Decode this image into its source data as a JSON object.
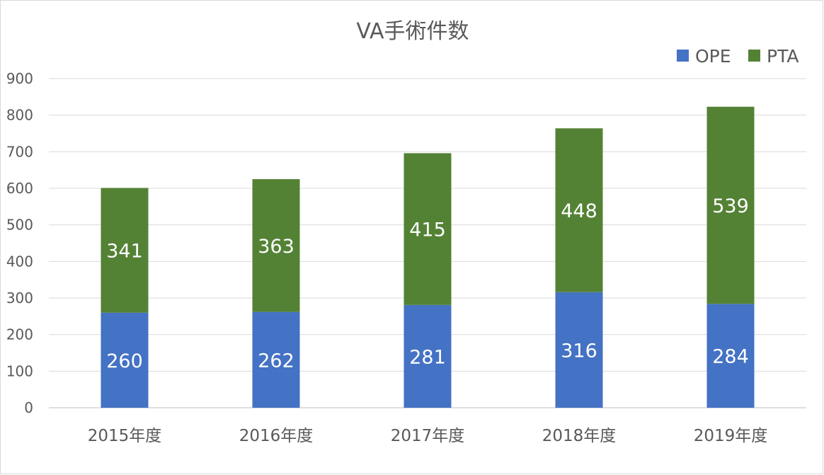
{
  "chart_data": {
    "type": "bar",
    "stacked": true,
    "title": "VA手術件数",
    "xlabel": "",
    "ylabel": "",
    "categories": [
      "2015年度",
      "2016年度",
      "2017年度",
      "2018年度",
      "2019年度"
    ],
    "series": [
      {
        "name": "OPE",
        "values": [
          260,
          262,
          281,
          316,
          284
        ],
        "color": "#4472c4"
      },
      {
        "name": "PTA",
        "values": [
          341,
          363,
          415,
          448,
          539
        ],
        "color": "#548235"
      }
    ],
    "ylim": [
      0,
      900
    ],
    "yticks": [
      0,
      100,
      200,
      300,
      400,
      500,
      600,
      700,
      800,
      900
    ],
    "grid": true,
    "legend": "top-right",
    "data_labels": true
  }
}
